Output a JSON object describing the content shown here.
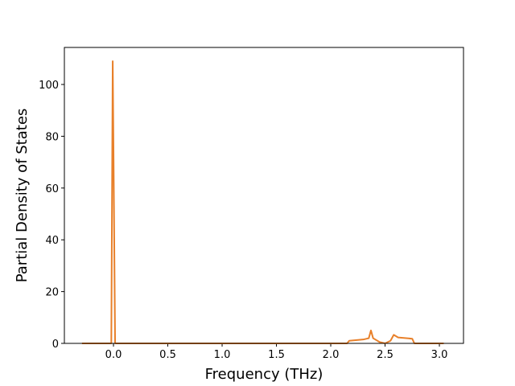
{
  "chart_data": {
    "type": "line",
    "xlabel": "Frequency (THz)",
    "ylabel": "Partial Density of States",
    "x": [
      -0.29,
      -0.02,
      -0.007,
      0.015,
      2.15,
      2.17,
      2.3,
      2.35,
      2.37,
      2.39,
      2.45,
      2.5,
      2.55,
      2.58,
      2.62,
      2.75,
      2.77,
      3.04
    ],
    "series": [
      {
        "color": "#e8802a",
        "values": [
          0,
          0,
          109,
          0,
          0,
          1,
          1.5,
          2,
          5,
          2,
          0.5,
          0,
          1,
          3.3,
          2.3,
          1.8,
          0,
          0
        ]
      }
    ],
    "xlim": [
      -0.452,
      3.222
    ],
    "xticks": [
      {
        "value": 0,
        "label": "0.0"
      },
      {
        "value": 0.5,
        "label": "0.5"
      },
      {
        "value": 1,
        "label": "1.0"
      },
      {
        "value": 1.5,
        "label": "1.5"
      },
      {
        "value": 2,
        "label": "2.0"
      },
      {
        "value": 2.5,
        "label": "2.5"
      },
      {
        "value": 3,
        "label": "3.0"
      }
    ],
    "ylim": [
      0,
      114.3
    ],
    "yticks": [
      0,
      20,
      40,
      60,
      80,
      100
    ],
    "grid": false
  }
}
